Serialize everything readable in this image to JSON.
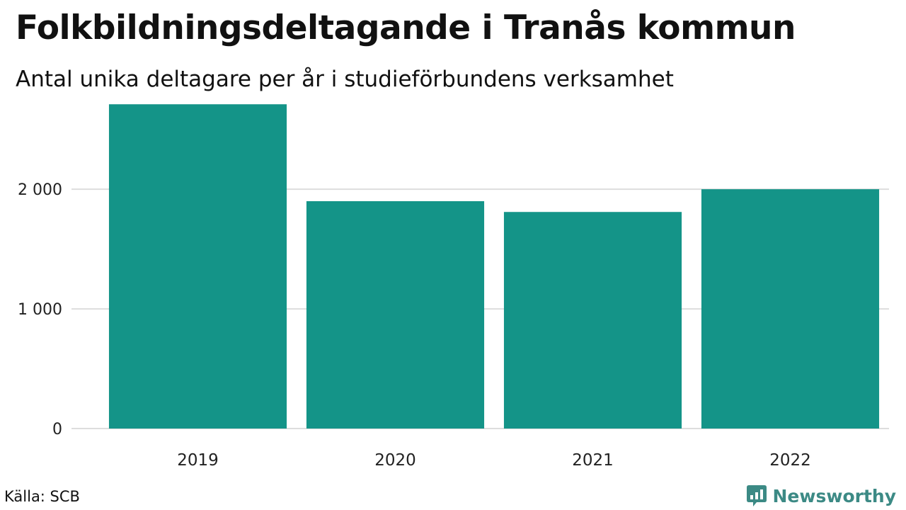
{
  "header": {
    "title": "Folkbildningsdeltagande i Tranås kommun",
    "subtitle": "Antal unika deltagare per år i studieförbundens verksamhet"
  },
  "footer": {
    "source": "Källa: SCB",
    "brand": "Newsworthy",
    "brand_icon": "chart-bubble-icon"
  },
  "colors": {
    "bar": "#149488",
    "grid": "#dddddd",
    "brand": "#3c8a85"
  },
  "chart_data": {
    "type": "bar",
    "title": "Folkbildningsdeltagande i Tranås kommun",
    "subtitle": "Antal unika deltagare per år i studieförbundens verksamhet",
    "categories": [
      "2019",
      "2020",
      "2021",
      "2022"
    ],
    "values": [
      2710,
      1900,
      1810,
      2000
    ],
    "ylim": [
      0,
      2800
    ],
    "yticks": [
      0,
      1000,
      2000
    ],
    "ytick_labels": [
      "0",
      "1 000",
      "2 000"
    ],
    "xlabel": "",
    "ylabel": "",
    "grid": true,
    "legend": "none"
  }
}
